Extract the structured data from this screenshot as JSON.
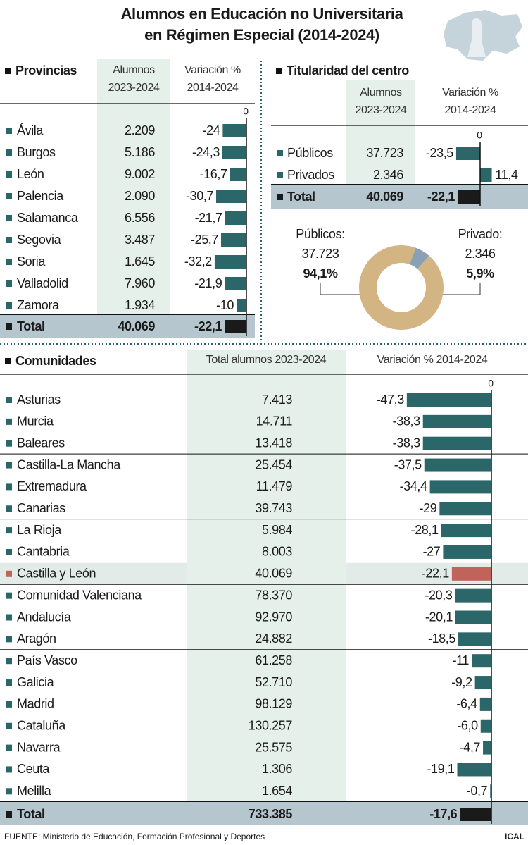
{
  "title": [
    "Alumnos en Educación no Universitaria",
    "en Régimen Especial (2014-2024)"
  ],
  "colors": {
    "bar": "#2b6668",
    "total": "#1a1a1a",
    "highlight": "#c0635a"
  },
  "provincias": {
    "heading": "Provincias",
    "columns": [
      [
        "Alumnos",
        "2023-2024"
      ],
      [
        "Variación %",
        "2014-2024"
      ]
    ],
    "zero": 0,
    "rows": [
      {
        "name": "Ávila",
        "alumnos": "2.209",
        "variacion": -24,
        "variacion_label": "-24"
      },
      {
        "name": "Burgos",
        "alumnos": "5.186",
        "variacion": -24.3,
        "variacion_label": "-24,3"
      },
      {
        "name": "León",
        "alumnos": "9.002",
        "variacion": -16.7,
        "variacion_label": "-16,7"
      },
      {
        "name": "Palencia",
        "alumnos": "2.090",
        "variacion": -30.7,
        "variacion_label": "-30,7"
      },
      {
        "name": "Salamanca",
        "alumnos": "6.556",
        "variacion": -21.7,
        "variacion_label": "-21,7"
      },
      {
        "name": "Segovia",
        "alumnos": "3.487",
        "variacion": -25.7,
        "variacion_label": "-25,7"
      },
      {
        "name": "Soria",
        "alumnos": "1.645",
        "variacion": -32.2,
        "variacion_label": "-32,2"
      },
      {
        "name": "Valladolid",
        "alumnos": "7.960",
        "variacion": -21.9,
        "variacion_label": "-21,9"
      },
      {
        "name": "Zamora",
        "alumnos": "1.934",
        "variacion": -10,
        "variacion_label": "-10"
      }
    ],
    "total": {
      "name": "Total",
      "alumnos": "40.069",
      "variacion": -22.1,
      "variacion_label": "-22,1"
    }
  },
  "titularidad": {
    "heading": "Titularidad del centro",
    "columns": [
      [
        "Alumnos",
        "2023-2024"
      ],
      [
        "Variación %",
        "2014-2024"
      ]
    ],
    "zero": 0,
    "rows": [
      {
        "name": "Públicos",
        "alumnos": "37.723",
        "variacion": -23.5,
        "variacion_label": "-23,5"
      },
      {
        "name": "Privados",
        "alumnos": "2.346",
        "variacion": 11.4,
        "variacion_label": "11,4"
      }
    ],
    "total": {
      "name": "Total",
      "alumnos": "40.069",
      "variacion": -22.1,
      "variacion_label": "-22,1"
    },
    "donut": [
      {
        "name": "Públicos:",
        "alumnos": "37.723",
        "value": 94.1,
        "label": "94,1%",
        "color": "#d3b584"
      },
      {
        "name": "Privado:",
        "alumnos": "2.346",
        "value": 5.9,
        "label": "5,9%",
        "color": "#8aa0b5"
      }
    ]
  },
  "comunidades": {
    "heading": "Comunidades",
    "columns": [
      [
        "Total alumnos 2023-2024"
      ],
      [
        "Variación % 2014-2024"
      ]
    ],
    "zero": 0,
    "rows": [
      {
        "name": "Asturias",
        "alumnos": "7.413",
        "variacion": -47.3,
        "variacion_label": "-47,3"
      },
      {
        "name": "Murcia",
        "alumnos": "14.711",
        "variacion": -38.3,
        "variacion_label": "-38,3"
      },
      {
        "name": "Baleares",
        "alumnos": "13.418",
        "variacion": -38.3,
        "variacion_label": "-38,3"
      },
      {
        "name": "Castilla-La Mancha",
        "alumnos": "25.454",
        "variacion": -37.5,
        "variacion_label": "-37,5"
      },
      {
        "name": "Extremadura",
        "alumnos": "11.479",
        "variacion": -34.4,
        "variacion_label": "-34,4"
      },
      {
        "name": "Canarias",
        "alumnos": "39.743",
        "variacion": -29,
        "variacion_label": "-29"
      },
      {
        "name": "La Rioja",
        "alumnos": "5.984",
        "variacion": -28.1,
        "variacion_label": "-28,1"
      },
      {
        "name": "Cantabria",
        "alumnos": "8.003",
        "variacion": -27,
        "variacion_label": "-27"
      },
      {
        "name": "Castilla y León",
        "alumnos": "40.069",
        "variacion": -22.1,
        "variacion_label": "-22,1",
        "highlight": true
      },
      {
        "name": "Comunidad Valenciana",
        "alumnos": "78.370",
        "variacion": -20.3,
        "variacion_label": "-20,3"
      },
      {
        "name": "Andalucía",
        "alumnos": "92.970",
        "variacion": -20.1,
        "variacion_label": "-20,1"
      },
      {
        "name": "Aragón",
        "alumnos": "24.882",
        "variacion": -18.5,
        "variacion_label": "-18,5"
      },
      {
        "name": "País Vasco",
        "alumnos": "61.258",
        "variacion": -11,
        "variacion_label": "-11"
      },
      {
        "name": "Galicia",
        "alumnos": "52.710",
        "variacion": -9.2,
        "variacion_label": "-9,2"
      },
      {
        "name": "Madrid",
        "alumnos": "98.129",
        "variacion": -6.4,
        "variacion_label": "-6,4"
      },
      {
        "name": "Cataluña",
        "alumnos": "130.257",
        "variacion": -6.0,
        "variacion_label": "-6,0"
      },
      {
        "name": "Navarra",
        "alumnos": "25.575",
        "variacion": -4.7,
        "variacion_label": "-4,7"
      },
      {
        "name": "Ceuta",
        "alumnos": "1.306",
        "variacion": -19.1,
        "variacion_label": "-19,1"
      },
      {
        "name": "Melilla",
        "alumnos": "1.654",
        "variacion": -0.7,
        "variacion_label": "-0,7"
      }
    ],
    "total": {
      "name": "Total",
      "alumnos": "733.385",
      "variacion": -17.6,
      "variacion_label": "-17,6"
    }
  },
  "source": "FUENTE:  Ministerio de Educación, Formación Profesional y Deportes",
  "credit": "ICAL"
}
